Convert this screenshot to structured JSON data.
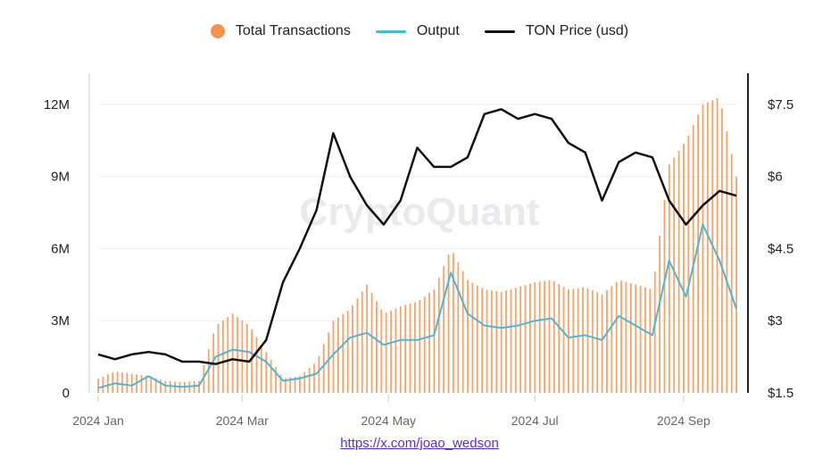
{
  "chart_data": {
    "type": "bar+line",
    "title": "",
    "watermark": "CryptoQuant",
    "legend": {
      "position": "top-center",
      "items": [
        {
          "label": "Total Transactions",
          "symbol": "dot",
          "color": "#f7934c"
        },
        {
          "label": "Output",
          "symbol": "line",
          "color": "#4ab8d4"
        },
        {
          "label": "TON Price (usd)",
          "symbol": "line",
          "color": "#111111"
        }
      ]
    },
    "x_axis": {
      "type": "date",
      "range": [
        "2024-01-01",
        "2024-09-23"
      ],
      "ticks": [
        {
          "date": "2024-01-01",
          "label": "2024 Jan"
        },
        {
          "date": "2024-03-01",
          "label": "2024 Mar"
        },
        {
          "date": "2024-05-01",
          "label": "2024 May"
        },
        {
          "date": "2024-07-01",
          "label": "2024 Jul"
        },
        {
          "date": "2024-09-01",
          "label": "2024 Sep"
        }
      ]
    },
    "y_left": {
      "range": [
        0,
        13000000
      ],
      "ticks": [
        {
          "value": 0,
          "label": "0"
        },
        {
          "value": 3000000,
          "label": "3M"
        },
        {
          "value": 6000000,
          "label": "6M"
        },
        {
          "value": 9000000,
          "label": "9M"
        },
        {
          "value": 12000000,
          "label": "12M"
        }
      ]
    },
    "y_right": {
      "range": [
        1.5,
        8.0
      ],
      "ticks": [
        {
          "value": 1.5,
          "label": "$1.5"
        },
        {
          "value": 3,
          "label": "$3"
        },
        {
          "value": 4.5,
          "label": "$4.5"
        },
        {
          "value": 6,
          "label": "$6"
        },
        {
          "value": 7.5,
          "label": "$7.5"
        }
      ]
    },
    "series": [
      {
        "name": "Total Transactions",
        "type": "bar",
        "axis": "left",
        "color": "#f7934c",
        "points": [
          [
            "2024-01-01",
            600000
          ],
          [
            "2024-01-08",
            900000
          ],
          [
            "2024-01-15",
            800000
          ],
          [
            "2024-01-22",
            700000
          ],
          [
            "2024-01-29",
            500000
          ],
          [
            "2024-02-05",
            450000
          ],
          [
            "2024-02-12",
            500000
          ],
          [
            "2024-02-19",
            2800000
          ],
          [
            "2024-02-26",
            3300000
          ],
          [
            "2024-03-04",
            2800000
          ],
          [
            "2024-03-11",
            1700000
          ],
          [
            "2024-03-18",
            600000
          ],
          [
            "2024-03-25",
            700000
          ],
          [
            "2024-04-01",
            1300000
          ],
          [
            "2024-04-08",
            3000000
          ],
          [
            "2024-04-15",
            3500000
          ],
          [
            "2024-04-22",
            4500000
          ],
          [
            "2024-04-29",
            3300000
          ],
          [
            "2024-05-06",
            3600000
          ],
          [
            "2024-05-13",
            3800000
          ],
          [
            "2024-05-20",
            4300000
          ],
          [
            "2024-05-27",
            6000000
          ],
          [
            "2024-06-03",
            4700000
          ],
          [
            "2024-06-10",
            4300000
          ],
          [
            "2024-06-17",
            4200000
          ],
          [
            "2024-06-24",
            4400000
          ],
          [
            "2024-07-01",
            4600000
          ],
          [
            "2024-07-08",
            4700000
          ],
          [
            "2024-07-15",
            4300000
          ],
          [
            "2024-07-22",
            4400000
          ],
          [
            "2024-07-29",
            4100000
          ],
          [
            "2024-08-05",
            4700000
          ],
          [
            "2024-08-12",
            4500000
          ],
          [
            "2024-08-19",
            4300000
          ],
          [
            "2024-08-26",
            9500000
          ],
          [
            "2024-09-02",
            10500000
          ],
          [
            "2024-09-09",
            12000000
          ],
          [
            "2024-09-16",
            12300000
          ],
          [
            "2024-09-23",
            9000000
          ]
        ]
      },
      {
        "name": "Output",
        "type": "line",
        "axis": "left",
        "color": "#4ab8d4",
        "points": [
          [
            "2024-01-01",
            200000
          ],
          [
            "2024-01-08",
            400000
          ],
          [
            "2024-01-15",
            300000
          ],
          [
            "2024-01-22",
            700000
          ],
          [
            "2024-01-29",
            300000
          ],
          [
            "2024-02-05",
            250000
          ],
          [
            "2024-02-12",
            300000
          ],
          [
            "2024-02-19",
            1500000
          ],
          [
            "2024-02-26",
            1800000
          ],
          [
            "2024-03-04",
            1700000
          ],
          [
            "2024-03-11",
            1300000
          ],
          [
            "2024-03-18",
            500000
          ],
          [
            "2024-03-25",
            600000
          ],
          [
            "2024-04-01",
            800000
          ],
          [
            "2024-04-08",
            1600000
          ],
          [
            "2024-04-15",
            2300000
          ],
          [
            "2024-04-22",
            2500000
          ],
          [
            "2024-04-29",
            2000000
          ],
          [
            "2024-05-06",
            2200000
          ],
          [
            "2024-05-13",
            2200000
          ],
          [
            "2024-05-20",
            2400000
          ],
          [
            "2024-05-27",
            5000000
          ],
          [
            "2024-06-03",
            3300000
          ],
          [
            "2024-06-10",
            2800000
          ],
          [
            "2024-06-17",
            2700000
          ],
          [
            "2024-06-24",
            2800000
          ],
          [
            "2024-07-01",
            3000000
          ],
          [
            "2024-07-08",
            3100000
          ],
          [
            "2024-07-15",
            2300000
          ],
          [
            "2024-07-22",
            2400000
          ],
          [
            "2024-07-29",
            2200000
          ],
          [
            "2024-08-05",
            3200000
          ],
          [
            "2024-08-12",
            2800000
          ],
          [
            "2024-08-19",
            2400000
          ],
          [
            "2024-08-26",
            5500000
          ],
          [
            "2024-09-02",
            4000000
          ],
          [
            "2024-09-09",
            7000000
          ],
          [
            "2024-09-16",
            5500000
          ],
          [
            "2024-09-23",
            3500000
          ]
        ]
      },
      {
        "name": "TON Price (usd)",
        "type": "line",
        "axis": "right",
        "color": "#111111",
        "points": [
          [
            "2024-01-01",
            2.3
          ],
          [
            "2024-01-08",
            2.2
          ],
          [
            "2024-01-15",
            2.3
          ],
          [
            "2024-01-22",
            2.35
          ],
          [
            "2024-01-29",
            2.3
          ],
          [
            "2024-02-05",
            2.15
          ],
          [
            "2024-02-12",
            2.15
          ],
          [
            "2024-02-19",
            2.1
          ],
          [
            "2024-02-26",
            2.2
          ],
          [
            "2024-03-04",
            2.15
          ],
          [
            "2024-03-11",
            2.6
          ],
          [
            "2024-03-18",
            3.8
          ],
          [
            "2024-03-25",
            4.5
          ],
          [
            "2024-04-01",
            5.3
          ],
          [
            "2024-04-08",
            6.9
          ],
          [
            "2024-04-15",
            6.0
          ],
          [
            "2024-04-22",
            5.4
          ],
          [
            "2024-04-29",
            5.0
          ],
          [
            "2024-05-06",
            5.5
          ],
          [
            "2024-05-13",
            6.6
          ],
          [
            "2024-05-20",
            6.2
          ],
          [
            "2024-05-27",
            6.2
          ],
          [
            "2024-06-03",
            6.4
          ],
          [
            "2024-06-10",
            7.3
          ],
          [
            "2024-06-17",
            7.4
          ],
          [
            "2024-06-24",
            7.2
          ],
          [
            "2024-07-01",
            7.3
          ],
          [
            "2024-07-08",
            7.2
          ],
          [
            "2024-07-15",
            6.7
          ],
          [
            "2024-07-22",
            6.5
          ],
          [
            "2024-07-29",
            5.5
          ],
          [
            "2024-08-05",
            6.3
          ],
          [
            "2024-08-12",
            6.5
          ],
          [
            "2024-08-19",
            6.4
          ],
          [
            "2024-08-26",
            5.5
          ],
          [
            "2024-09-02",
            5.0
          ],
          [
            "2024-09-09",
            5.4
          ],
          [
            "2024-09-16",
            5.7
          ],
          [
            "2024-09-23",
            5.6
          ]
        ]
      }
    ]
  },
  "footer": {
    "link_text": "https://x.com/joao_wedson"
  }
}
